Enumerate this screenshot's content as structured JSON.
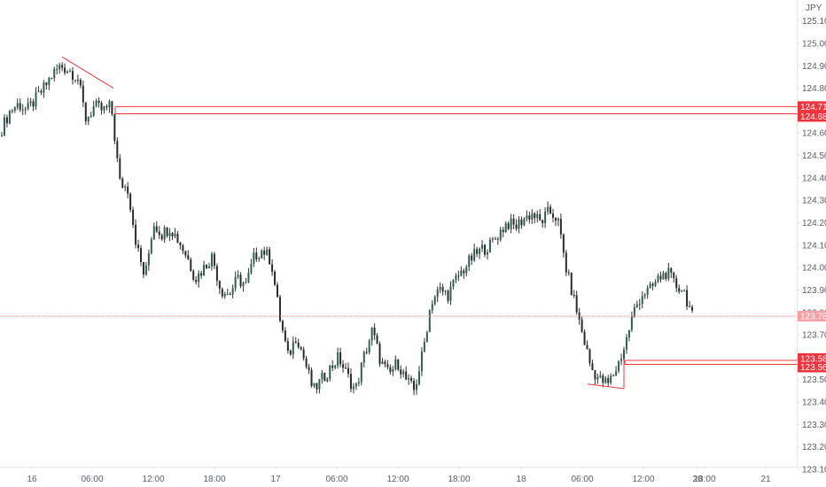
{
  "symbol": "JPY",
  "colors": {
    "up": "#2f5e54",
    "down": "#2b2b2b",
    "wick": "#333333",
    "drawing": "#f0343e",
    "badge_red": "#f0343e",
    "badge_pink": "#f7a1a6",
    "price_line": "#f7a1a6",
    "axis_text": "#5a5f6a",
    "border": "#e6e8ec"
  },
  "chart_data": {
    "type": "candlestick",
    "y_ticks": [
      "125.100",
      "125.000",
      "124.900",
      "124.800",
      "124.700",
      "124.600",
      "124.500",
      "124.400",
      "124.300",
      "124.200",
      "124.100",
      "124.000",
      "123.900",
      "123.800",
      "123.700",
      "123.600",
      "123.500",
      "123.400",
      "123.300",
      "123.200",
      "123.100"
    ],
    "x_ticks": [
      "16",
      "06:00",
      "12:00",
      "18:00",
      "17",
      "06:00",
      "12:00",
      "18:00",
      "18",
      "06:00",
      "12:00",
      "18:00",
      "20",
      "21"
    ],
    "ylim": [
      123.1,
      125.15
    ],
    "current_price": "123.783",
    "price_levels": [
      {
        "label": "124.718",
        "value": 124.718
      },
      {
        "label": "124.686",
        "value": 124.686
      },
      {
        "label": "123.586",
        "value": 123.586
      },
      {
        "label": "123.568",
        "value": 123.568
      }
    ],
    "trendlines": [
      {
        "from": [
          3.3,
          124.94
        ],
        "to": [
          6.5,
          124.8
        ]
      },
      {
        "from": [
          33,
          123.48
        ],
        "to": [
          35.2,
          123.46
        ]
      }
    ],
    "candles_per_label": 6,
    "label_index": {
      "16": 0,
      "06:00a": 5.5,
      "12:00a": 9,
      "18:00a": 12.5,
      "17": 16,
      "06:00b": 19.5,
      "12:00b": 23,
      "18:00b": 26.5,
      "18": 30,
      "06:00c": 33.5,
      "12:00c": 37,
      "18:00c": 40.5,
      "20": 44,
      "21": 49
    },
    "closes": [
      124.62,
      124.7,
      124.73,
      124.7,
      124.75,
      124.8,
      124.86,
      124.9,
      124.88,
      124.85,
      124.66,
      124.72,
      124.7,
      124.72,
      124.38,
      124.35,
      124.1,
      123.95,
      124.2,
      124.15,
      124.18,
      124.12,
      124.05,
      123.95,
      124.0,
      124.05,
      123.9,
      123.88,
      123.95,
      123.92,
      124.05,
      124.08,
      124.03,
      123.78,
      123.6,
      123.7,
      123.58,
      123.45,
      123.5,
      123.55,
      123.6,
      123.52,
      123.45,
      123.6,
      123.72,
      123.58,
      123.52,
      123.58,
      123.5,
      123.45,
      123.62,
      123.85,
      123.9,
      123.88,
      123.95,
      124.0,
      124.05,
      124.08,
      124.1,
      124.15,
      124.2,
      124.18,
      124.22,
      124.24,
      124.2,
      124.25,
      124.22,
      124.0,
      123.85,
      123.7,
      123.55,
      123.5,
      123.48,
      123.55,
      123.65,
      123.8,
      123.88,
      123.9,
      123.95,
      123.98,
      123.92,
      123.9,
      123.78
    ]
  }
}
